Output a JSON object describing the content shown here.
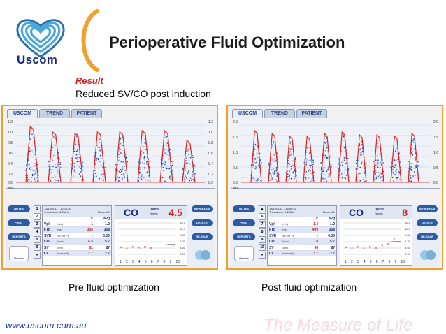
{
  "brand": {
    "logo_text": "Uscom",
    "accent": "#f0a030",
    "heart_color": "#4aa8d8"
  },
  "header": {
    "title": "Perioperative Fluid Optimization"
  },
  "result": {
    "label": "Result",
    "text": "Reduced SV/CO post induction"
  },
  "panels": [
    {
      "tabs": [
        "USCOM",
        "TREND",
        "PATIENT"
      ],
      "y_axis": [
        "1.2",
        "1.0",
        "0.8",
        "0.6",
        "0.4",
        "0.2",
        "0.0"
      ],
      "y_unit": "m/s",
      "buttons_left": [
        "NOTES",
        "PRINT",
        "REPORTS"
      ],
      "buttons_right": [
        "NEW EXAM",
        "DELETE",
        "RE-SAVE"
      ],
      "badge": "Uscom",
      "numbers": [
        "1",
        "2",
        "3",
        "4",
        "5",
        "6",
        "▼"
      ],
      "exam_info": {
        "date": "13/10/2011 - 12:12:30",
        "transducer": "Transducer: 2.2MHz",
        "mode": "Mode: AV"
      },
      "col_v": "V",
      "col_avg": "Avg",
      "params": [
        {
          "name": "Vpk",
          "unit": "(m/s)",
          "v": "1",
          "avg": "1.2"
        },
        {
          "name": "FTc",
          "unit": "(ms)",
          "v": "356",
          "avg": "368"
        },
        {
          "name": "SVR",
          "unit": "(ds·cm⁻⁵)",
          "v": "-",
          "avg": "0.00"
        },
        {
          "name": "CO",
          "unit": "(l/min)",
          "v": "4.5",
          "avg": "5.7"
        },
        {
          "name": "SV",
          "unit": "(cm³)",
          "v": "81",
          "avg": "87"
        },
        {
          "name": "CI",
          "unit": "(l/min/m²)",
          "v": "2.1",
          "avg": "2.7"
        }
      ],
      "trend_label": "CO",
      "trend_title": "Trend",
      "trend_sub": "(l/min)",
      "trend_value": "4.5",
      "trend_ticks": [
        "15.0",
        "12.4",
        "9.80",
        "7.20",
        "4.60",
        "2.00"
      ],
      "average_label": "Average",
      "x_ticks": [
        "1",
        "2",
        "3",
        "4",
        "5",
        "6",
        "7",
        "8",
        "9",
        "10"
      ],
      "trend_points": [
        4.9,
        4.8,
        5.0,
        4.7,
        5.1,
        4.5
      ],
      "caption": "Pre fluid optimization"
    },
    {
      "tabs": [
        "USCOM",
        "TREND",
        "PATIENT"
      ],
      "y_axis": [
        "2.0",
        "1.5",
        "1.0",
        "0.5",
        "0.0"
      ],
      "y_unit": "m/s",
      "buttons_left": [
        "NOTES",
        "PRINT",
        "REPORTS"
      ],
      "buttons_right": [
        "NEW EXAM",
        "DELETE",
        "RE-SAVE"
      ],
      "badge": "Uscom",
      "numbers": [
        "▲",
        "6",
        "7",
        "8",
        "9",
        "10",
        "▼"
      ],
      "exam_info": {
        "date": "13/10/2011 - 16:59:45",
        "transducer": "Transducer: 2.2MHz",
        "mode": "Mode: AV"
      },
      "col_v": "V",
      "col_avg": "Avg",
      "params": [
        {
          "name": "Vpk",
          "unit": "(m/s)",
          "v": "1.4",
          "avg": "1.2"
        },
        {
          "name": "FTc",
          "unit": "(ms)",
          "v": "409",
          "avg": "368"
        },
        {
          "name": "SVR",
          "unit": "(ds·cm⁻⁵)",
          "v": "-",
          "avg": "0.00"
        },
        {
          "name": "CO",
          "unit": "(l/min)",
          "v": "8",
          "avg": "5.7"
        },
        {
          "name": "SV",
          "unit": "(cm³)",
          "v": "98",
          "avg": "87"
        },
        {
          "name": "CI",
          "unit": "(l/min/m²)",
          "v": "3.7",
          "avg": "2.7"
        }
      ],
      "trend_label": "CO",
      "trend_title": "Trend",
      "trend_sub": "(l/min)",
      "trend_value": "8",
      "trend_ticks": [
        "15.0",
        "12.4",
        "9.80",
        "7.20",
        "4.60",
        "2.00"
      ],
      "average_label": "Average",
      "x_ticks": [
        "1",
        "2",
        "3",
        "4",
        "5",
        "6",
        "7",
        "8",
        "9",
        "10"
      ],
      "trend_points": [
        4.9,
        4.8,
        5.0,
        4.7,
        5.1,
        4.5,
        5.8,
        6.2,
        8.0
      ],
      "caption": "Post fluid optimization"
    }
  ],
  "footer": {
    "url": "www.uscom.com.au",
    "tagline": "The Measure of Life"
  }
}
